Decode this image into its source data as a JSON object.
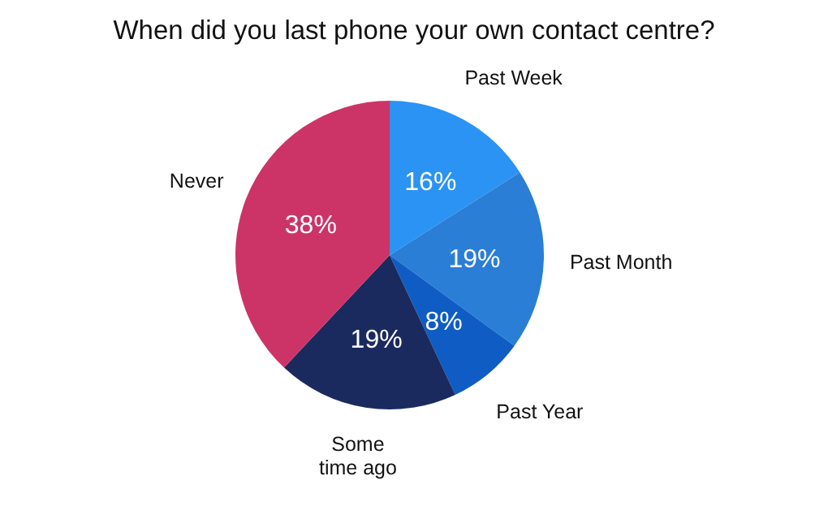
{
  "chart_data": {
    "type": "pie",
    "title": "When did you last phone your own contact centre?",
    "categories": [
      "Past Week",
      "Past Month",
      "Past Year",
      "Some time ago",
      "Never"
    ],
    "values": [
      16,
      19,
      8,
      19,
      38
    ],
    "value_labels": [
      "16%",
      "19%",
      "8%",
      "19%",
      "38%"
    ],
    "colors": [
      "#2b93f4",
      "#2a7ed6",
      "#0f5cc4",
      "#1b2a5e",
      "#cc3467"
    ]
  }
}
